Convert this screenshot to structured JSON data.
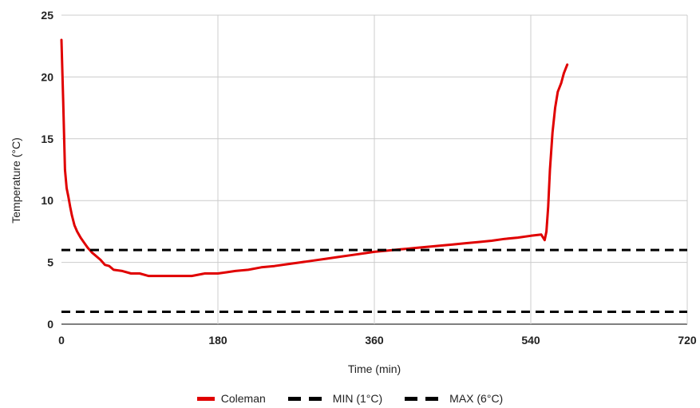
{
  "chart_data": {
    "type": "line",
    "title": "",
    "xlabel": "Time (min)",
    "ylabel": "Temperature (°C)",
    "xlim": [
      0,
      720
    ],
    "ylim": [
      0,
      25
    ],
    "x_ticks": [
      "0",
      "180",
      "360",
      "540",
      "720"
    ],
    "y_ticks": [
      "0",
      "5",
      "10",
      "15",
      "20",
      "25"
    ],
    "grid": true,
    "legend_position": "bottom",
    "series": [
      {
        "name": "Coleman",
        "color": "#e00000",
        "style": "solid",
        "points": [
          [
            0,
            23
          ],
          [
            2,
            18
          ],
          [
            4,
            12.5
          ],
          [
            6,
            11
          ],
          [
            8,
            10.3
          ],
          [
            10,
            9.5
          ],
          [
            12,
            8.8
          ],
          [
            15,
            8
          ],
          [
            18,
            7.5
          ],
          [
            22,
            7
          ],
          [
            26,
            6.6
          ],
          [
            30,
            6.2
          ],
          [
            35,
            5.8
          ],
          [
            40,
            5.5
          ],
          [
            45,
            5.2
          ],
          [
            50,
            4.8
          ],
          [
            55,
            4.7
          ],
          [
            60,
            4.4
          ],
          [
            70,
            4.3
          ],
          [
            80,
            4.1
          ],
          [
            90,
            4.1
          ],
          [
            100,
            3.9
          ],
          [
            120,
            3.9
          ],
          [
            150,
            3.9
          ],
          [
            165,
            4.1
          ],
          [
            180,
            4.1
          ],
          [
            190,
            4.2
          ],
          [
            200,
            4.3
          ],
          [
            215,
            4.4
          ],
          [
            230,
            4.6
          ],
          [
            245,
            4.7
          ],
          [
            260,
            4.85
          ],
          [
            275,
            5
          ],
          [
            290,
            5.15
          ],
          [
            305,
            5.3
          ],
          [
            320,
            5.45
          ],
          [
            335,
            5.6
          ],
          [
            350,
            5.75
          ],
          [
            360,
            5.85
          ],
          [
            375,
            5.95
          ],
          [
            390,
            6.05
          ],
          [
            405,
            6.15
          ],
          [
            420,
            6.25
          ],
          [
            435,
            6.35
          ],
          [
            450,
            6.45
          ],
          [
            465,
            6.55
          ],
          [
            480,
            6.65
          ],
          [
            495,
            6.75
          ],
          [
            510,
            6.9
          ],
          [
            525,
            7
          ],
          [
            540,
            7.15
          ],
          [
            552,
            7.25
          ],
          [
            556,
            6.8
          ],
          [
            558,
            7.5
          ],
          [
            560,
            9.5
          ],
          [
            562,
            12.5
          ],
          [
            565,
            15.5
          ],
          [
            568,
            17.5
          ],
          [
            571,
            18.8
          ],
          [
            575,
            19.5
          ],
          [
            578,
            20.3
          ],
          [
            582,
            21
          ]
        ]
      },
      {
        "name": "MIN (1°C)",
        "color": "#000000",
        "style": "dashed",
        "points": [
          [
            0,
            1
          ],
          [
            720,
            1
          ]
        ]
      },
      {
        "name": "MAX (6°C)",
        "color": "#000000",
        "style": "dashed",
        "points": [
          [
            0,
            6
          ],
          [
            720,
            6
          ]
        ]
      }
    ]
  }
}
